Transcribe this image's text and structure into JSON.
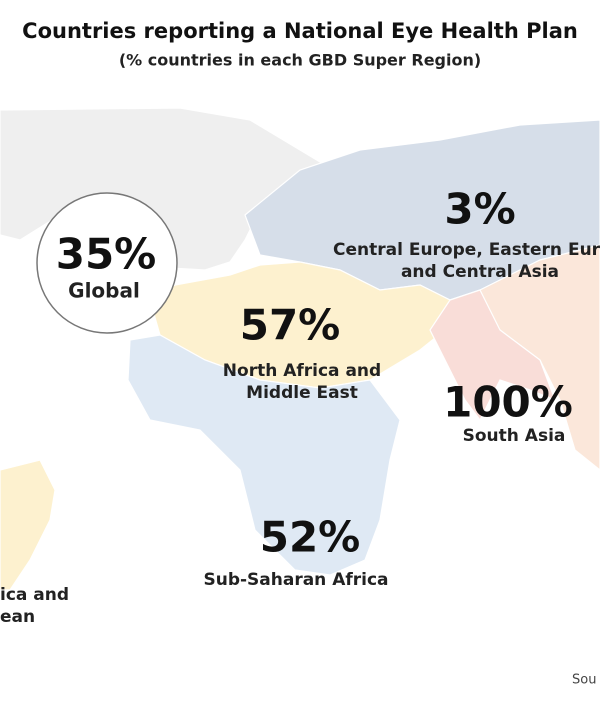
{
  "header": {
    "title": "Countries reporting a National Eye Health Plan",
    "subtitle": "(% countries in each GBD Super Region)"
  },
  "global": {
    "value": "35%",
    "label": "Global"
  },
  "regions": [
    {
      "value": "3%",
      "lines": [
        "Central Europe, Eastern Eur",
        "and Central Asia"
      ]
    },
    {
      "value": "57%",
      "lines": [
        "North Africa and",
        "Middle East"
      ]
    },
    {
      "value": "100%",
      "lines": [
        "South Asia"
      ]
    },
    {
      "value": "52%",
      "lines": [
        "Sub-Saharan Africa"
      ]
    },
    {
      "lines": [
        "ica and",
        "ean"
      ]
    }
  ],
  "source": "Sou"
}
